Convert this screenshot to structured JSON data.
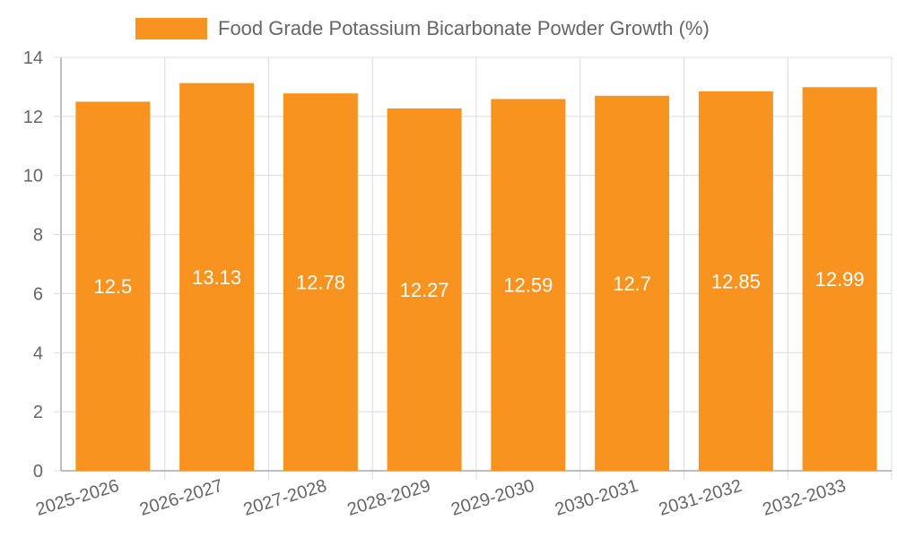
{
  "chart_data": {
    "type": "bar",
    "title": "",
    "xlabel": "",
    "ylabel": "",
    "categories": [
      "2025-2026",
      "2026-2027",
      "2027-2028",
      "2028-2029",
      "2029-2030",
      "2030-2031",
      "2031-2032",
      "2032-2033"
    ],
    "series": [
      {
        "name": "Food Grade Potassium Bicarbonate Powder Growth (%)",
        "values": [
          12.5,
          13.13,
          12.78,
          12.27,
          12.59,
          12.7,
          12.85,
          12.99
        ],
        "color": "#f7931e"
      }
    ],
    "ylim": [
      0,
      14
    ],
    "yticks": [
      0,
      2,
      4,
      6,
      8,
      10,
      12,
      14
    ],
    "grid": true,
    "legend": "top-center",
    "data_labels": [
      "12.5",
      "13.13",
      "12.78",
      "12.27",
      "12.59",
      "12.7",
      "12.85",
      "12.99"
    ]
  },
  "colors": {
    "bar": "#f7931e",
    "grid": "#dcdcdc",
    "axis": "#a9a9a9",
    "text": "#666666"
  }
}
